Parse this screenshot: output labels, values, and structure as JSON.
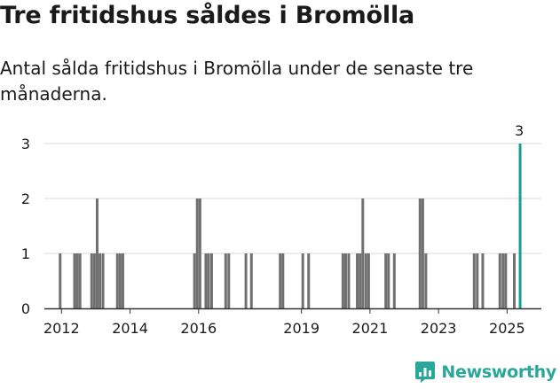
{
  "title": "Tre fritidshus såldes i Bromölla",
  "subtitle": "Antal sålda fritidshus i Bromölla under de senaste tre månaderna.",
  "brand": "Newsworthy",
  "colors": {
    "bar": "#707070",
    "highlight": "#1a9e8f",
    "grid": "#d8d8d8",
    "axis": "#333333",
    "brand": "#2aa79b"
  },
  "chart_data": {
    "type": "bar",
    "title": "",
    "xlabel": "",
    "ylabel": "",
    "ylim": [
      0,
      3
    ],
    "yticks": [
      "0",
      "1",
      "2",
      "3"
    ],
    "xticks": [
      {
        "label": "2012",
        "t": 2012.0
      },
      {
        "label": "2014",
        "t": 2014.0
      },
      {
        "label": "2016",
        "t": 2016.0
      },
      {
        "label": "2019",
        "t": 2019.0
      },
      {
        "label": "2021",
        "t": 2021.0
      },
      {
        "label": "2023",
        "t": 2023.0
      },
      {
        "label": "2025",
        "t": 2025.0
      }
    ],
    "xlim": [
      2011.5,
      2026.0
    ],
    "series": [
      {
        "values": [
          {
            "t": 2011.96,
            "v": 1
          },
          {
            "t": 2012.38,
            "v": 1
          },
          {
            "t": 2012.46,
            "v": 1
          },
          {
            "t": 2012.54,
            "v": 1
          },
          {
            "t": 2012.88,
            "v": 1
          },
          {
            "t": 2012.96,
            "v": 1
          },
          {
            "t": 2013.04,
            "v": 2
          },
          {
            "t": 2013.12,
            "v": 1
          },
          {
            "t": 2013.21,
            "v": 1
          },
          {
            "t": 2013.63,
            "v": 1
          },
          {
            "t": 2013.71,
            "v": 1
          },
          {
            "t": 2013.79,
            "v": 1
          },
          {
            "t": 2015.88,
            "v": 1
          },
          {
            "t": 2015.96,
            "v": 2
          },
          {
            "t": 2016.04,
            "v": 2
          },
          {
            "t": 2016.21,
            "v": 1
          },
          {
            "t": 2016.29,
            "v": 1
          },
          {
            "t": 2016.38,
            "v": 1
          },
          {
            "t": 2016.79,
            "v": 1
          },
          {
            "t": 2016.88,
            "v": 1
          },
          {
            "t": 2017.38,
            "v": 1
          },
          {
            "t": 2017.54,
            "v": 1
          },
          {
            "t": 2018.38,
            "v": 1
          },
          {
            "t": 2018.46,
            "v": 1
          },
          {
            "t": 2019.04,
            "v": 1
          },
          {
            "t": 2019.21,
            "v": 1
          },
          {
            "t": 2020.21,
            "v": 1
          },
          {
            "t": 2020.29,
            "v": 1
          },
          {
            "t": 2020.38,
            "v": 1
          },
          {
            "t": 2020.63,
            "v": 1
          },
          {
            "t": 2020.71,
            "v": 1
          },
          {
            "t": 2020.79,
            "v": 2
          },
          {
            "t": 2020.88,
            "v": 1
          },
          {
            "t": 2020.96,
            "v": 1
          },
          {
            "t": 2021.46,
            "v": 1
          },
          {
            "t": 2021.54,
            "v": 1
          },
          {
            "t": 2021.71,
            "v": 1
          },
          {
            "t": 2022.46,
            "v": 2
          },
          {
            "t": 2022.54,
            "v": 2
          },
          {
            "t": 2022.63,
            "v": 1
          },
          {
            "t": 2024.04,
            "v": 1
          },
          {
            "t": 2024.13,
            "v": 1
          },
          {
            "t": 2024.29,
            "v": 1
          },
          {
            "t": 2024.79,
            "v": 1
          },
          {
            "t": 2024.88,
            "v": 1
          },
          {
            "t": 2024.96,
            "v": 1
          },
          {
            "t": 2025.21,
            "v": 1
          },
          {
            "t": 2025.38,
            "v": 3,
            "highlight": true,
            "label": "3"
          }
        ]
      }
    ],
    "grid": true
  }
}
